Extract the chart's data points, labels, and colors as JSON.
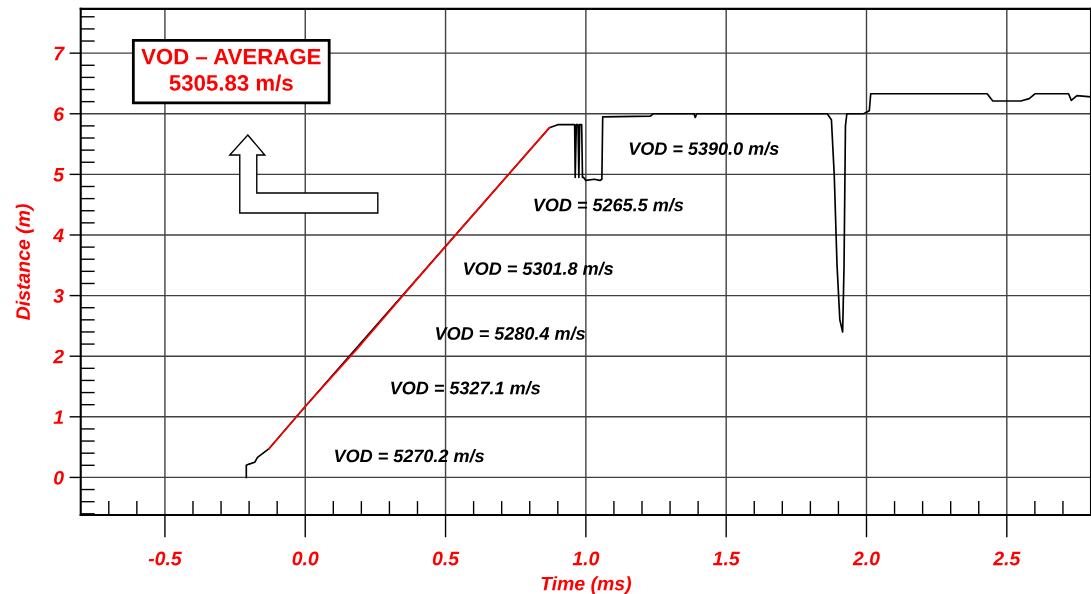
{
  "chart_data": {
    "type": "line",
    "xlabel": "Time (ms)",
    "ylabel": "Distance (m)",
    "xlim": [
      -0.8,
      2.8
    ],
    "ylim": [
      -0.62,
      7.73
    ],
    "xticks": [
      {
        "value": -0.7,
        "label": null
      },
      {
        "value": -0.6,
        "label": null
      },
      {
        "value": -0.5,
        "label": "-0.5"
      },
      {
        "value": -0.4,
        "label": null
      },
      {
        "value": -0.3,
        "label": null
      },
      {
        "value": -0.2,
        "label": null
      },
      {
        "value": -0.1,
        "label": null
      },
      {
        "value": 0,
        "label": "0.0"
      },
      {
        "value": 0.1,
        "label": null
      },
      {
        "value": 0.2,
        "label": null
      },
      {
        "value": 0.3,
        "label": null
      },
      {
        "value": 0.4,
        "label": null
      },
      {
        "value": 0.5,
        "label": "0.5"
      },
      {
        "value": 0.6,
        "label": null
      },
      {
        "value": 0.7,
        "label": null
      },
      {
        "value": 0.8,
        "label": null
      },
      {
        "value": 0.9,
        "label": null
      },
      {
        "value": 1.0,
        "label": "1.0"
      },
      {
        "value": 1.1,
        "label": null
      },
      {
        "value": 1.2,
        "label": null
      },
      {
        "value": 1.3,
        "label": null
      },
      {
        "value": 1.4,
        "label": null
      },
      {
        "value": 1.5,
        "label": "1.5"
      },
      {
        "value": 1.6,
        "label": null
      },
      {
        "value": 1.7,
        "label": null
      },
      {
        "value": 1.8,
        "label": null
      },
      {
        "value": 1.9,
        "label": null
      },
      {
        "value": 2.0,
        "label": "2.0"
      },
      {
        "value": 2.1,
        "label": null
      },
      {
        "value": 2.2,
        "label": null
      },
      {
        "value": 2.3,
        "label": null
      },
      {
        "value": 2.4,
        "label": null
      },
      {
        "value": 2.5,
        "label": "2.5"
      },
      {
        "value": 2.6,
        "label": null
      },
      {
        "value": 2.7,
        "label": null
      }
    ],
    "yticks": [
      {
        "value": -0.6,
        "label": null
      },
      {
        "value": -0.4,
        "label": null
      },
      {
        "value": -0.2,
        "label": null
      },
      0,
      {
        "value": 0.2,
        "label": null
      },
      {
        "value": 0.4,
        "label": null
      },
      {
        "value": 0.6,
        "label": null
      },
      {
        "value": 0.8,
        "label": null
      },
      1,
      {
        "value": 1.2,
        "label": null
      },
      {
        "value": 1.4,
        "label": null
      },
      {
        "value": 1.6,
        "label": null
      },
      {
        "value": 1.8,
        "label": null
      },
      2,
      {
        "value": 2.2,
        "label": null
      },
      {
        "value": 2.4,
        "label": null
      },
      {
        "value": 2.6,
        "label": null
      },
      {
        "value": 2.8,
        "label": null
      },
      3,
      {
        "value": 3.2,
        "label": null
      },
      {
        "value": 3.4,
        "label": null
      },
      {
        "value": 3.6,
        "label": null
      },
      {
        "value": 3.8,
        "label": null
      },
      4,
      {
        "value": 4.2,
        "label": null
      },
      {
        "value": 4.4,
        "label": null
      },
      {
        "value": 4.6,
        "label": null
      },
      {
        "value": 4.8,
        "label": null
      },
      5,
      {
        "value": 5.2,
        "label": null
      },
      {
        "value": 5.4,
        "label": null
      },
      {
        "value": 5.6,
        "label": null
      },
      {
        "value": 5.8,
        "label": null
      },
      6,
      {
        "value": 6.2,
        "label": null
      },
      {
        "value": 6.4,
        "label": null
      },
      {
        "value": 6.6,
        "label": null
      },
      {
        "value": 6.8,
        "label": null
      },
      7,
      {
        "value": 7.2,
        "label": null
      },
      {
        "value": 7.4,
        "label": null
      },
      {
        "value": 7.6,
        "label": null
      }
    ],
    "grid": true,
    "marker": "none",
    "line_style": "solid",
    "series": [
      {
        "color": "#000000",
        "x": [
          -0.21,
          -0.21,
          -0.2,
          -0.18,
          -0.17,
          -0.15,
          -0.13,
          0,
          0.87,
          0.9,
          0.96,
          0.962,
          0.966,
          0.972,
          0.975,
          0.978,
          0.985,
          0.988,
          0.992,
          1.0,
          1.03,
          1.05,
          1.057,
          1.06,
          1.23,
          1.24,
          1.385,
          1.39,
          1.395,
          1.86,
          1.875,
          1.885,
          1.895,
          1.905,
          1.915,
          1.92,
          1.925,
          1.93,
          1.99,
          2.01,
          2.015,
          2.43,
          2.45,
          2.55,
          2.58,
          2.6,
          2.72,
          2.73,
          2.75,
          2.8
        ],
        "values": [
          0,
          0.2,
          0.22,
          0.25,
          0.33,
          0.4,
          0.47,
          1.17,
          5.77,
          5.82,
          5.82,
          4.95,
          5.82,
          5.82,
          4.95,
          5.82,
          5.82,
          4.95,
          4.95,
          4.9,
          4.92,
          4.9,
          4.92,
          5.95,
          5.96,
          6.0,
          6.0,
          5.94,
          6.0,
          6.0,
          5.9,
          5.0,
          3.5,
          2.6,
          2.4,
          3.5,
          5.8,
          6.0,
          6.0,
          6.05,
          6.33,
          6.33,
          6.21,
          6.21,
          6.25,
          6.33,
          6.33,
          6.22,
          6.3,
          6.28
        ]
      },
      {
        "color": "#ff0000",
        "x": [
          -0.13,
          0,
          0.2,
          0.4,
          0.6,
          0.87
        ],
        "values": [
          0.47,
          1.17,
          2.2,
          3.28,
          4.34,
          5.77
        ]
      }
    ],
    "annotations": [
      "VOD – AVERAGE\n5305.83 m/s",
      "VOD = 5270.2 m/s",
      "VOD = 5327.1 m/s",
      "VOD = 5280.4 m/s",
      "VOD = 5301.8 m/s",
      "VOD = 5265.5 m/s",
      "VOD = 5390.0 m/s"
    ]
  }
}
